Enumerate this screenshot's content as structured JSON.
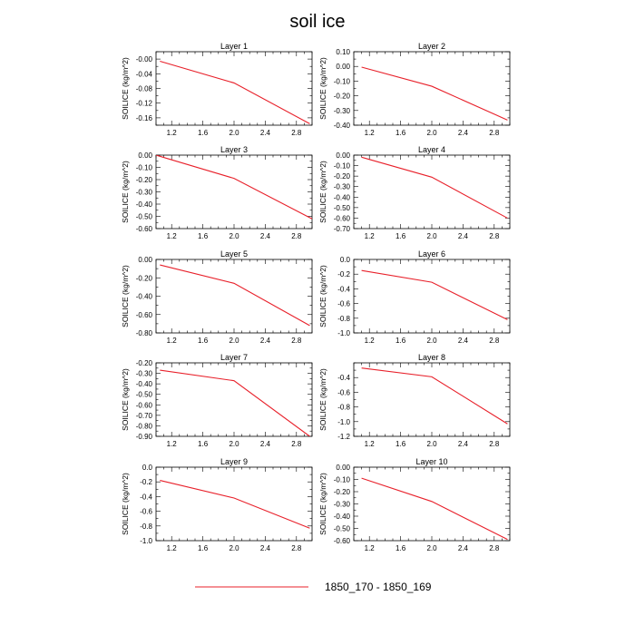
{
  "figure": {
    "title": "soil ice",
    "legend_label": "1850_170 - 1850_169",
    "line_color": "#e8202a"
  },
  "chart_data": [
    {
      "type": "line",
      "title": "Layer 1",
      "ylabel": "SOILICE  (kg/m^2)",
      "x": [
        1.05,
        2.0,
        2.97
      ],
      "y": [
        -0.006,
        -0.065,
        -0.176
      ],
      "xlim": [
        1.0,
        3.0
      ],
      "ylim": [
        -0.18,
        0.02
      ],
      "xticks": [
        "1.2",
        "1.6",
        "2.0",
        "2.4",
        "2.8"
      ],
      "yticks": [
        "-0.00",
        "-0.04",
        "-0.08",
        "-0.12",
        "-0.16"
      ],
      "ytick_values": [
        0.0,
        -0.04,
        -0.08,
        -0.12,
        -0.16
      ]
    },
    {
      "type": "line",
      "title": "Layer 2",
      "ylabel": "SOILICE  (kg/m^2)",
      "x": [
        1.1,
        2.0,
        2.97
      ],
      "y": [
        -0.005,
        -0.135,
        -0.365
      ],
      "xlim": [
        1.0,
        3.0
      ],
      "ylim": [
        -0.4,
        0.1
      ],
      "xticks": [
        "1.2",
        "1.6",
        "2.0",
        "2.4",
        "2.8"
      ],
      "yticks": [
        "0.10",
        "0.00",
        "-0.10",
        "-0.20",
        "-0.30",
        "-0.40"
      ],
      "ytick_values": [
        0.1,
        0.0,
        -0.1,
        -0.2,
        -0.3,
        -0.4
      ]
    },
    {
      "type": "line",
      "title": "Layer 3",
      "ylabel": "SOILICE  (kg/m^2)",
      "x": [
        1.0,
        2.0,
        3.0
      ],
      "y": [
        0.0,
        -0.19,
        -0.52
      ],
      "xlim": [
        1.0,
        3.0
      ],
      "ylim": [
        -0.6,
        0.0
      ],
      "xticks": [
        "1.2",
        "1.6",
        "2.0",
        "2.4",
        "2.8"
      ],
      "yticks": [
        "0.00",
        "-0.10",
        "-0.20",
        "-0.30",
        "-0.40",
        "-0.50",
        "-0.60"
      ],
      "ytick_values": [
        0.0,
        -0.1,
        -0.2,
        -0.3,
        -0.4,
        -0.5,
        -0.6
      ]
    },
    {
      "type": "line",
      "title": "Layer 4",
      "ylabel": "SOILICE  (kg/m^2)",
      "x": [
        1.1,
        2.0,
        2.97
      ],
      "y": [
        -0.02,
        -0.21,
        -0.6
      ],
      "xlim": [
        1.0,
        3.0
      ],
      "ylim": [
        -0.7,
        0.0
      ],
      "xticks": [
        "1.2",
        "1.6",
        "2.0",
        "2.4",
        "2.8"
      ],
      "yticks": [
        "0.00",
        "-0.10",
        "-0.20",
        "-0.30",
        "-0.40",
        "-0.50",
        "-0.60",
        "-0.70"
      ],
      "ytick_values": [
        0.0,
        -0.1,
        -0.2,
        -0.3,
        -0.4,
        -0.5,
        -0.6,
        -0.7
      ]
    },
    {
      "type": "line",
      "title": "Layer 5",
      "ylabel": "SOILICE  (kg/m^2)",
      "x": [
        1.05,
        2.0,
        2.97
      ],
      "y": [
        -0.06,
        -0.26,
        -0.72
      ],
      "xlim": [
        1.0,
        3.0
      ],
      "ylim": [
        -0.8,
        0.0
      ],
      "xticks": [
        "1.2",
        "1.6",
        "2.0",
        "2.4",
        "2.8"
      ],
      "yticks": [
        "0.00",
        "-0.20",
        "-0.40",
        "-0.60",
        "-0.80"
      ],
      "ytick_values": [
        0.0,
        -0.2,
        -0.4,
        -0.6,
        -0.8
      ]
    },
    {
      "type": "line",
      "title": "Layer 6",
      "ylabel": "SOILICE  (kg/m^2)",
      "x": [
        1.1,
        2.0,
        2.97
      ],
      "y": [
        -0.15,
        -0.31,
        -0.82
      ],
      "xlim": [
        1.0,
        3.0
      ],
      "ylim": [
        -1.0,
        0.0
      ],
      "xticks": [
        "1.2",
        "1.6",
        "2.0",
        "2.4",
        "2.8"
      ],
      "yticks": [
        "0.0",
        "-0.2",
        "-0.4",
        "-0.6",
        "-0.8",
        "-1.0"
      ],
      "ytick_values": [
        0.0,
        -0.2,
        -0.4,
        -0.6,
        -0.8,
        -1.0
      ]
    },
    {
      "type": "line",
      "title": "Layer 7",
      "ylabel": "SOILICE  (kg/m^2)",
      "x": [
        1.05,
        2.0,
        2.97
      ],
      "y": [
        -0.27,
        -0.37,
        -0.9
      ],
      "xlim": [
        1.0,
        3.0
      ],
      "ylim": [
        -0.9,
        -0.2
      ],
      "xticks": [
        "1.2",
        "1.6",
        "2.0",
        "2.4",
        "2.8"
      ],
      "yticks": [
        "-0.20",
        "-0.30",
        "-0.40",
        "-0.50",
        "-0.60",
        "-0.70",
        "-0.80",
        "-0.90"
      ],
      "ytick_values": [
        -0.2,
        -0.3,
        -0.4,
        -0.5,
        -0.6,
        -0.7,
        -0.8,
        -0.9
      ]
    },
    {
      "type": "line",
      "title": "Layer 8",
      "ylabel": "SOILICE  (kg/m^2)",
      "x": [
        1.1,
        2.0,
        2.97
      ],
      "y": [
        -0.27,
        -0.39,
        -1.03
      ],
      "xlim": [
        1.0,
        3.0
      ],
      "ylim": [
        -1.2,
        -0.2
      ],
      "xticks": [
        "1.2",
        "1.6",
        "2.0",
        "2.4",
        "2.8"
      ],
      "yticks": [
        "-0.4",
        "-0.6",
        "-0.8",
        "-1.0",
        "-1.2"
      ],
      "ytick_values": [
        -0.4,
        -0.6,
        -0.8,
        -1.0,
        -1.2
      ]
    },
    {
      "type": "line",
      "title": "Layer 9",
      "ylabel": "SOILICE  (kg/m^2)",
      "x": [
        1.05,
        2.0,
        2.97
      ],
      "y": [
        -0.18,
        -0.42,
        -0.83
      ],
      "xlim": [
        1.0,
        3.0
      ],
      "ylim": [
        -1.0,
        0.0
      ],
      "xticks": [
        "1.2",
        "1.6",
        "2.0",
        "2.4",
        "2.8"
      ],
      "yticks": [
        "0.0",
        "-0.2",
        "-0.4",
        "-0.6",
        "-0.8",
        "-1.0"
      ],
      "ytick_values": [
        0.0,
        -0.2,
        -0.4,
        -0.6,
        -0.8,
        -1.0
      ]
    },
    {
      "type": "line",
      "title": "Layer 10",
      "ylabel": "SOILICE  (kg/m^2)",
      "x": [
        1.1,
        2.0,
        2.97
      ],
      "y": [
        -0.09,
        -0.28,
        -0.59
      ],
      "xlim": [
        1.0,
        3.0
      ],
      "ylim": [
        -0.6,
        0.0
      ],
      "xticks": [
        "1.2",
        "1.6",
        "2.0",
        "2.4",
        "2.8"
      ],
      "yticks": [
        "0.00",
        "-0.10",
        "-0.20",
        "-0.30",
        "-0.40",
        "-0.50",
        "-0.60"
      ],
      "ytick_values": [
        0.0,
        -0.1,
        -0.2,
        -0.3,
        -0.4,
        -0.5,
        -0.6
      ]
    }
  ]
}
